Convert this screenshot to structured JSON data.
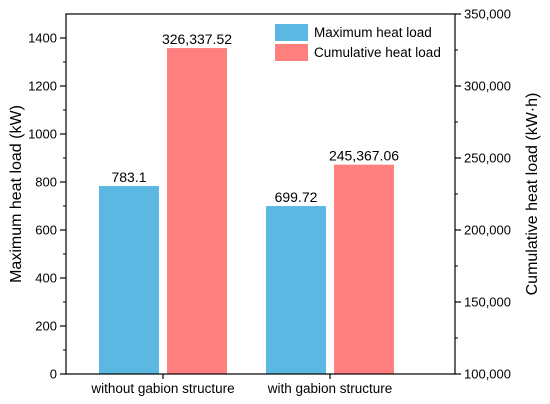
{
  "chart_data": {
    "type": "bar",
    "categories": [
      "without gabion structure",
      "with gabion structure"
    ],
    "series": [
      {
        "name": "Maximum heat load",
        "axis": "left",
        "values": [
          783.1,
          699.72
        ],
        "labels": [
          "783.1",
          "699.72"
        ],
        "color": "#5BB8E3"
      },
      {
        "name": "Cumulative heat load",
        "axis": "right",
        "values": [
          326337.52,
          245367.06
        ],
        "labels": [
          "326,337.52",
          "245,367.06"
        ],
        "color": "#FF7F7F"
      }
    ],
    "ylabel": "Maximum heat load (kW)",
    "ylim": [
      0,
      1500
    ],
    "yticks": [
      0,
      200,
      400,
      600,
      800,
      1000,
      1200,
      1400
    ],
    "ytick_labels": [
      "0",
      "200",
      "400",
      "600",
      "800",
      "1000",
      "1200",
      "1400"
    ],
    "y2label": "Cumulative heat load (kW·h)",
    "y2lim": [
      100000,
      350000
    ],
    "y2ticks": [
      100000,
      150000,
      200000,
      250000,
      300000,
      350000
    ],
    "y2tick_labels": [
      "100,000",
      "150,000",
      "200,000",
      "250,000",
      "300,000",
      "350,000"
    ],
    "legend_position": "top-right",
    "grid": false
  }
}
